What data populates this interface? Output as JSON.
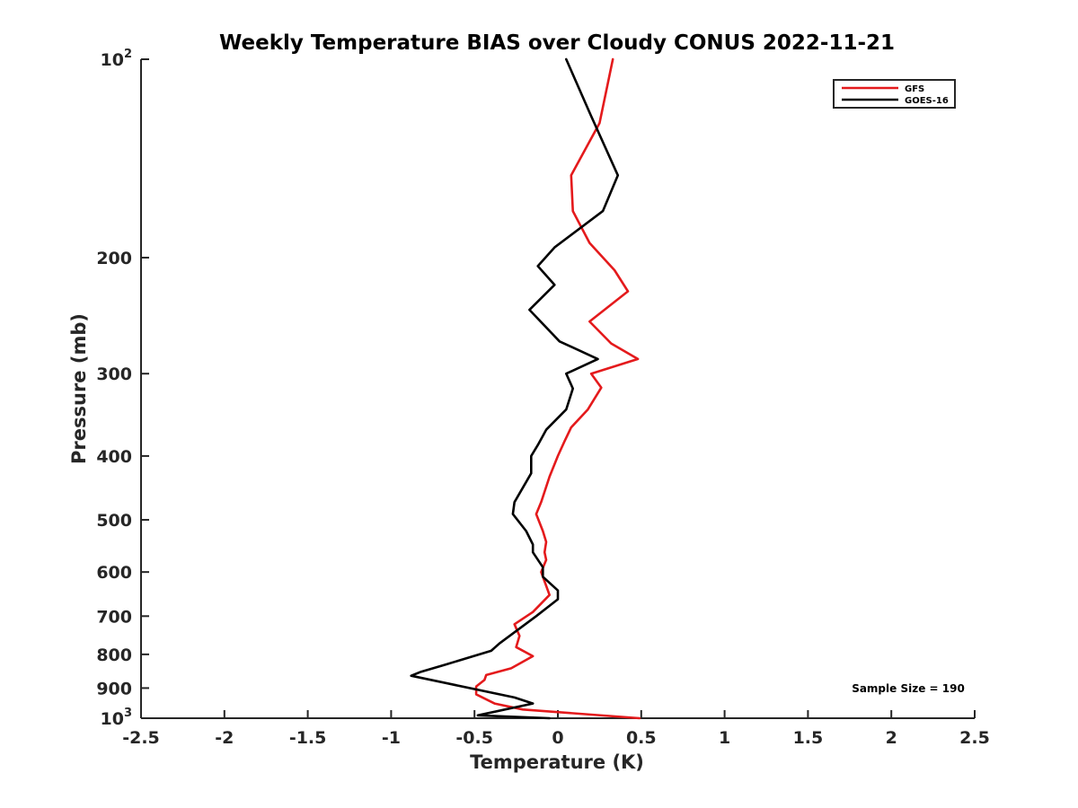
{
  "chart_data": {
    "type": "line",
    "title": "Weekly Temperature BIAS over Cloudy CONUS 2022-11-21",
    "xlabel": "Temperature (K)",
    "ylabel": "Pressure (mb)",
    "xlim": [
      -2.5,
      2.5
    ],
    "ylim": [
      100,
      1000
    ],
    "y_scale": "log",
    "y_reversed": true,
    "grid": false,
    "legend_position": "top-right",
    "x_ticks": [
      "-2.5",
      "-2",
      "-1.5",
      "-1",
      "-0.5",
      "0",
      "0.5",
      "1",
      "1.5",
      "2",
      "2.5"
    ],
    "y_ticks": [
      {
        "base": "10",
        "exp": "2"
      },
      {
        "base": "200",
        "exp": ""
      },
      {
        "base": "300",
        "exp": ""
      },
      {
        "base": "400",
        "exp": ""
      },
      {
        "base": "500",
        "exp": ""
      },
      {
        "base": "600",
        "exp": ""
      },
      {
        "base": "700",
        "exp": ""
      },
      {
        "base": "800",
        "exp": ""
      },
      {
        "base": "900",
        "exp": ""
      },
      {
        "base": "10",
        "exp": "3"
      }
    ],
    "annotation": "Sample Size = 190",
    "series": [
      {
        "name": "GFS",
        "color": "#e41a1c",
        "points": [
          [
            0.33,
            100
          ],
          [
            0.25,
            125
          ],
          [
            0.08,
            150
          ],
          [
            0.09,
            170
          ],
          [
            0.19,
            190
          ],
          [
            0.34,
            209
          ],
          [
            0.42,
            225
          ],
          [
            0.19,
            250
          ],
          [
            0.32,
            270
          ],
          [
            0.48,
            285
          ],
          [
            0.2,
            300
          ],
          [
            0.26,
            315
          ],
          [
            0.18,
            340
          ],
          [
            0.08,
            362
          ],
          [
            0.04,
            380
          ],
          [
            0.0,
            400
          ],
          [
            -0.05,
            430
          ],
          [
            -0.1,
            470
          ],
          [
            -0.13,
            490
          ],
          [
            -0.09,
            520
          ],
          [
            -0.07,
            540
          ],
          [
            -0.08,
            560
          ],
          [
            -0.07,
            575
          ],
          [
            -0.1,
            600
          ],
          [
            -0.05,
            650
          ],
          [
            -0.15,
            690
          ],
          [
            -0.26,
            720
          ],
          [
            -0.23,
            750
          ],
          [
            -0.25,
            780
          ],
          [
            -0.15,
            805
          ],
          [
            -0.28,
            840
          ],
          [
            -0.43,
            860
          ],
          [
            -0.44,
            875
          ],
          [
            -0.49,
            895
          ],
          [
            -0.49,
            920
          ],
          [
            -0.38,
            950
          ],
          [
            -0.21,
            970
          ],
          [
            0.49,
            1000
          ]
        ]
      },
      {
        "name": "GOES-16",
        "color": "#000000",
        "points": [
          [
            0.05,
            100
          ],
          [
            0.2,
            122
          ],
          [
            0.36,
            150
          ],
          [
            0.27,
            170
          ],
          [
            -0.02,
            193
          ],
          [
            -0.12,
            206
          ],
          [
            -0.02,
            220
          ],
          [
            -0.17,
            240
          ],
          [
            0.01,
            268
          ],
          [
            0.24,
            285
          ],
          [
            0.05,
            300
          ],
          [
            0.09,
            316
          ],
          [
            0.05,
            340
          ],
          [
            -0.07,
            365
          ],
          [
            -0.12,
            385
          ],
          [
            -0.16,
            400
          ],
          [
            -0.16,
            425
          ],
          [
            -0.26,
            470
          ],
          [
            -0.27,
            490
          ],
          [
            -0.19,
            520
          ],
          [
            -0.15,
            545
          ],
          [
            -0.15,
            560
          ],
          [
            -0.09,
            590
          ],
          [
            -0.09,
            610
          ],
          [
            0.0,
            640
          ],
          [
            0.0,
            660
          ],
          [
            -0.13,
            700
          ],
          [
            -0.35,
            770
          ],
          [
            -0.4,
            790
          ],
          [
            -0.68,
            830
          ],
          [
            -0.82,
            850
          ],
          [
            -0.88,
            862
          ],
          [
            -0.26,
            930
          ],
          [
            -0.15,
            950
          ],
          [
            -0.48,
            990
          ],
          [
            -0.05,
            1000
          ]
        ]
      }
    ]
  }
}
